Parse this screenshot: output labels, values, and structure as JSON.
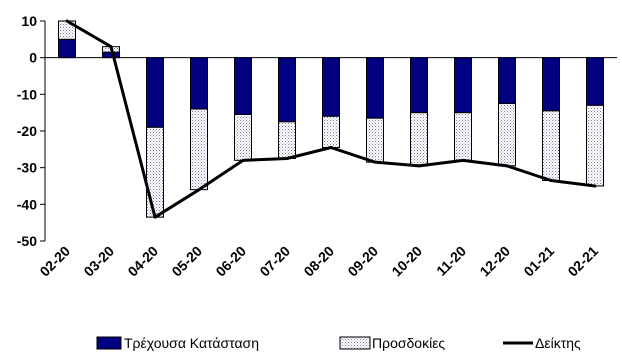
{
  "chart_data": {
    "type": "bar",
    "stacked": true,
    "categories": [
      "02-20",
      "03-20",
      "04-20",
      "05-20",
      "06-20",
      "07-20",
      "08-20",
      "09-20",
      "10-20",
      "11-20",
      "12-20",
      "01-21",
      "02-21"
    ],
    "series": [
      {
        "name": "Τρέχουσα Κατάσταση",
        "kind": "bar",
        "color": "#000080",
        "pattern": "solid",
        "values": [
          5,
          1.5,
          -19,
          -14,
          -15.5,
          -17.5,
          -16,
          -16.5,
          -15,
          -15,
          -12.5,
          -14.5,
          -13
        ]
      },
      {
        "name": "Προσδοκίες",
        "kind": "bar",
        "color": "#ffffff",
        "pattern": "dotted",
        "values": [
          5,
          1.5,
          -24.5,
          -22,
          -12.5,
          -10,
          -8.5,
          -12,
          -14.5,
          -13,
          -17,
          -19,
          -22
        ]
      },
      {
        "name": "Δείκτης",
        "kind": "line",
        "color": "#000000",
        "values": [
          10,
          3,
          -43.5,
          -36,
          -28,
          -27.5,
          -24.5,
          -28.5,
          -29.5,
          -28,
          -29.5,
          -33.5,
          -35
        ]
      }
    ],
    "ylim": [
      -50,
      10
    ],
    "yticks": [
      "10",
      "0",
      "-10",
      "-20",
      "-30",
      "-40",
      "-50"
    ],
    "legend_position": "bottom",
    "grid": false
  }
}
